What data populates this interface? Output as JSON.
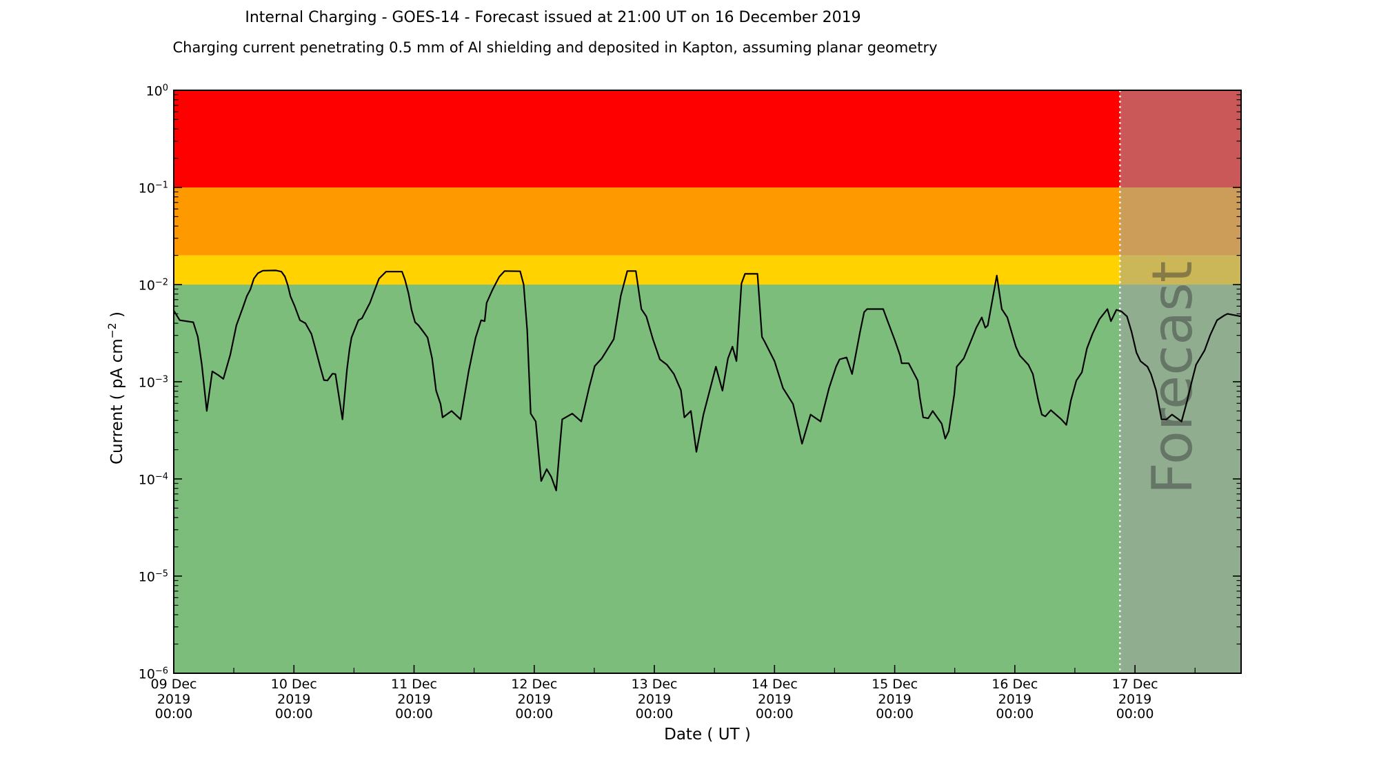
{
  "chart_data": {
    "type": "line",
    "title": "Internal Charging - GOES-14 - Forecast issued at 21:00 UT on 16 December 2019",
    "subtitle": "Charging current penetrating 0.5 mm of Al shielding and deposited in Kapton, assuming planar geometry",
    "xlabel": "Date ( UT )",
    "ylabel": "Current ( pA cm⁻² )",
    "ylabel_parts": {
      "prefix": "Current ( pA cm",
      "sup": "−2",
      "suffix": " )"
    },
    "ylim": [
      1e-06,
      1.0
    ],
    "grid": false,
    "legend": null,
    "y_axis": {
      "scale": "log",
      "tick_exponents": [
        "0",
        "−1",
        "−2",
        "−3",
        "−4",
        "−5",
        "−6"
      ]
    },
    "x_axis": {
      "total_hours": 213.2,
      "minor_tick_interval_hours": 12,
      "ticks": [
        {
          "hour": 0,
          "lines": [
            "09 Dec",
            "2019",
            "00:00"
          ]
        },
        {
          "hour": 24,
          "lines": [
            "10 Dec",
            "2019",
            "00:00"
          ]
        },
        {
          "hour": 48,
          "lines": [
            "11 Dec",
            "2019",
            "00:00"
          ]
        },
        {
          "hour": 72,
          "lines": [
            "12 Dec",
            "2019",
            "00:00"
          ]
        },
        {
          "hour": 96,
          "lines": [
            "13 Dec",
            "2019",
            "00:00"
          ]
        },
        {
          "hour": 120,
          "lines": [
            "14 Dec",
            "2019",
            "00:00"
          ]
        },
        {
          "hour": 144,
          "lines": [
            "15 Dec",
            "2019",
            "00:00"
          ]
        },
        {
          "hour": 168,
          "lines": [
            "16 Dec",
            "2019",
            "00:00"
          ]
        },
        {
          "hour": 192,
          "lines": [
            "17 Dec",
            "2019",
            "00:00"
          ]
        }
      ]
    },
    "bands": [
      {
        "name": "red",
        "color": "#ff0000",
        "from": 0.1,
        "to": 1.0
      },
      {
        "name": "orange",
        "color": "#ff9900",
        "from": 0.02,
        "to": 0.1
      },
      {
        "name": "yellow",
        "color": "#ffd200",
        "from": 0.01,
        "to": 0.02
      },
      {
        "name": "green",
        "color": "#7cbd7c",
        "from": 1e-06,
        "to": 0.01
      }
    ],
    "forecast": {
      "label": "Forecast",
      "start_hour": 189,
      "start_label": "16 Dec 2019 21:00 UT",
      "overlay_color": "rgba(160,160,160,0.55)",
      "divider_color": "#ffffff"
    },
    "series": [
      {
        "name": "charging-current",
        "color": "#000000",
        "points": [
          [
            0,
            0.0054
          ],
          [
            1.2,
            0.0043
          ],
          [
            3.9,
            0.0041
          ],
          [
            4.8,
            0.0029
          ],
          [
            5.6,
            0.0015
          ],
          [
            6.6,
            0.0005
          ],
          [
            7.7,
            0.00128
          ],
          [
            8.8,
            0.00118
          ],
          [
            9.9,
            0.00107
          ],
          [
            11.3,
            0.0019
          ],
          [
            12.5,
            0.0038
          ],
          [
            13.8,
            0.0058
          ],
          [
            14.6,
            0.0076
          ],
          [
            15.3,
            0.0089
          ],
          [
            16.0,
            0.0115
          ],
          [
            16.8,
            0.0131
          ],
          [
            17.8,
            0.0139
          ],
          [
            20.4,
            0.014
          ],
          [
            21.5,
            0.0136
          ],
          [
            22.2,
            0.0121
          ],
          [
            22.8,
            0.0098
          ],
          [
            23.3,
            0.0076
          ],
          [
            24.1,
            0.0061
          ],
          [
            25.2,
            0.0043
          ],
          [
            26.3,
            0.004
          ],
          [
            27.5,
            0.0031
          ],
          [
            28.4,
            0.0021
          ],
          [
            29.3,
            0.0014
          ],
          [
            30.0,
            0.00104
          ],
          [
            30.7,
            0.00103
          ],
          [
            31.7,
            0.00121
          ],
          [
            32.3,
            0.0012
          ],
          [
            33.7,
            0.00041
          ],
          [
            34.6,
            0.00133
          ],
          [
            35.1,
            0.00215
          ],
          [
            35.5,
            0.00285
          ],
          [
            36.2,
            0.0035
          ],
          [
            36.9,
            0.0043
          ],
          [
            37.6,
            0.0045
          ],
          [
            38.3,
            0.0053
          ],
          [
            39.2,
            0.0065
          ],
          [
            40.1,
            0.0087
          ],
          [
            41.0,
            0.0115
          ],
          [
            42.4,
            0.0136
          ],
          [
            45.6,
            0.0136
          ],
          [
            46.2,
            0.0112
          ],
          [
            46.9,
            0.0081
          ],
          [
            47.5,
            0.0055
          ],
          [
            48.2,
            0.0041
          ],
          [
            48.9,
            0.0038
          ],
          [
            50.0,
            0.0032
          ],
          [
            50.7,
            0.00285
          ],
          [
            51.6,
            0.00174
          ],
          [
            52.4,
            0.00081
          ],
          [
            53.3,
            0.00059
          ],
          [
            53.7,
            0.00043
          ],
          [
            55.5,
            0.0005
          ],
          [
            57.3,
            0.00041
          ],
          [
            58.9,
            0.00128
          ],
          [
            60.3,
            0.00285
          ],
          [
            61.4,
            0.0043
          ],
          [
            62.1,
            0.0042
          ],
          [
            62.5,
            0.0065
          ],
          [
            63.7,
            0.0089
          ],
          [
            65.0,
            0.012
          ],
          [
            66.1,
            0.0138
          ],
          [
            69.2,
            0.0137
          ],
          [
            69.9,
            0.01
          ],
          [
            70.6,
            0.0034
          ],
          [
            71.3,
            0.00047
          ],
          [
            72.3,
            0.00039
          ],
          [
            73.4,
            9.5e-05
          ],
          [
            74.5,
            0.000126
          ],
          [
            75.4,
            0.000105
          ],
          [
            76.4,
            7.6e-05
          ],
          [
            77.2,
            0.00024
          ],
          [
            77.6,
            0.00041
          ],
          [
            79.6,
            0.00047
          ],
          [
            81.4,
            0.00039
          ],
          [
            83.0,
            0.00088
          ],
          [
            84.1,
            0.00145
          ],
          [
            85.5,
            0.00174
          ],
          [
            87.9,
            0.00275
          ],
          [
            89.3,
            0.0077
          ],
          [
            90.6,
            0.0138
          ],
          [
            92.3,
            0.0138
          ],
          [
            93.4,
            0.0056
          ],
          [
            94.4,
            0.0047
          ],
          [
            95.7,
            0.00275
          ],
          [
            97.1,
            0.0017
          ],
          [
            98.5,
            0.0015
          ],
          [
            99.9,
            0.0012
          ],
          [
            101.3,
            0.00082
          ],
          [
            102.0,
            0.00043
          ],
          [
            103.3,
            0.0005
          ],
          [
            104.4,
            0.00019
          ],
          [
            105.8,
            0.00046
          ],
          [
            108.3,
            0.00143
          ],
          [
            109.6,
            0.00081
          ],
          [
            110.7,
            0.00174
          ],
          [
            111.6,
            0.0023
          ],
          [
            112.4,
            0.00163
          ],
          [
            113.4,
            0.0103
          ],
          [
            114.1,
            0.0129
          ],
          [
            116.6,
            0.0129
          ],
          [
            117.5,
            0.0029
          ],
          [
            118.0,
            0.0026
          ],
          [
            120.0,
            0.00163
          ],
          [
            121.7,
            0.00086
          ],
          [
            123.7,
            0.00059
          ],
          [
            125.5,
            0.00023
          ],
          [
            127.2,
            0.00046
          ],
          [
            129.2,
            0.00039
          ],
          [
            130.9,
            0.00086
          ],
          [
            132.3,
            0.00143
          ],
          [
            133.0,
            0.0017
          ],
          [
            134.4,
            0.00178
          ],
          [
            135.5,
            0.0012
          ],
          [
            137.1,
            0.0033
          ],
          [
            137.9,
            0.0052
          ],
          [
            138.5,
            0.0056
          ],
          [
            141.7,
            0.0056
          ],
          [
            142.6,
            0.0042
          ],
          [
            144.0,
            0.0027
          ],
          [
            145.1,
            0.00186
          ],
          [
            145.4,
            0.00155
          ],
          [
            146.8,
            0.00155
          ],
          [
            148.6,
            0.00103
          ],
          [
            149.0,
            0.0007
          ],
          [
            149.7,
            0.00043
          ],
          [
            150.7,
            0.00042
          ],
          [
            151.6,
            0.0005
          ],
          [
            153.4,
            0.00037
          ],
          [
            154.1,
            0.00026
          ],
          [
            154.8,
            0.00031
          ],
          [
            155.9,
            0.00074
          ],
          [
            156.4,
            0.00143
          ],
          [
            157.8,
            0.00174
          ],
          [
            159.2,
            0.0026
          ],
          [
            160.3,
            0.0036
          ],
          [
            161.4,
            0.0046
          ],
          [
            162.1,
            0.0036
          ],
          [
            162.6,
            0.0038
          ],
          [
            164.4,
            0.0124
          ],
          [
            165.4,
            0.0056
          ],
          [
            166.5,
            0.0046
          ],
          [
            168.2,
            0.0023
          ],
          [
            169.0,
            0.00186
          ],
          [
            170.7,
            0.0015
          ],
          [
            171.6,
            0.0012
          ],
          [
            172.7,
            0.00064
          ],
          [
            173.4,
            0.00046
          ],
          [
            174.1,
            0.00044
          ],
          [
            175.2,
            0.00051
          ],
          [
            177.3,
            0.00041
          ],
          [
            178.3,
            0.00036
          ],
          [
            179.2,
            0.00064
          ],
          [
            180.3,
            0.00103
          ],
          [
            181.4,
            0.00125
          ],
          [
            182.4,
            0.0022
          ],
          [
            183.5,
            0.0031
          ],
          [
            184.9,
            0.0044
          ],
          [
            186.5,
            0.0056
          ],
          [
            187.2,
            0.0042
          ],
          [
            188.3,
            0.0055
          ],
          [
            189.3,
            0.0053
          ],
          [
            190.4,
            0.0047
          ],
          [
            191.3,
            0.0033
          ],
          [
            192.3,
            0.002
          ],
          [
            193.1,
            0.00163
          ],
          [
            194.5,
            0.00143
          ],
          [
            195.2,
            0.0012
          ],
          [
            196.2,
            0.00082
          ],
          [
            197.3,
            0.00041
          ],
          [
            198.3,
            0.00041
          ],
          [
            199.4,
            0.00046
          ],
          [
            201.3,
            0.00039
          ],
          [
            202.4,
            0.00063
          ],
          [
            203.4,
            0.00103
          ],
          [
            204.2,
            0.0015
          ],
          [
            205.9,
            0.0021
          ],
          [
            207.0,
            0.003
          ],
          [
            208.4,
            0.0043
          ],
          [
            209.8,
            0.0048
          ],
          [
            210.5,
            0.005
          ],
          [
            213.2,
            0.0047
          ]
        ]
      }
    ]
  }
}
